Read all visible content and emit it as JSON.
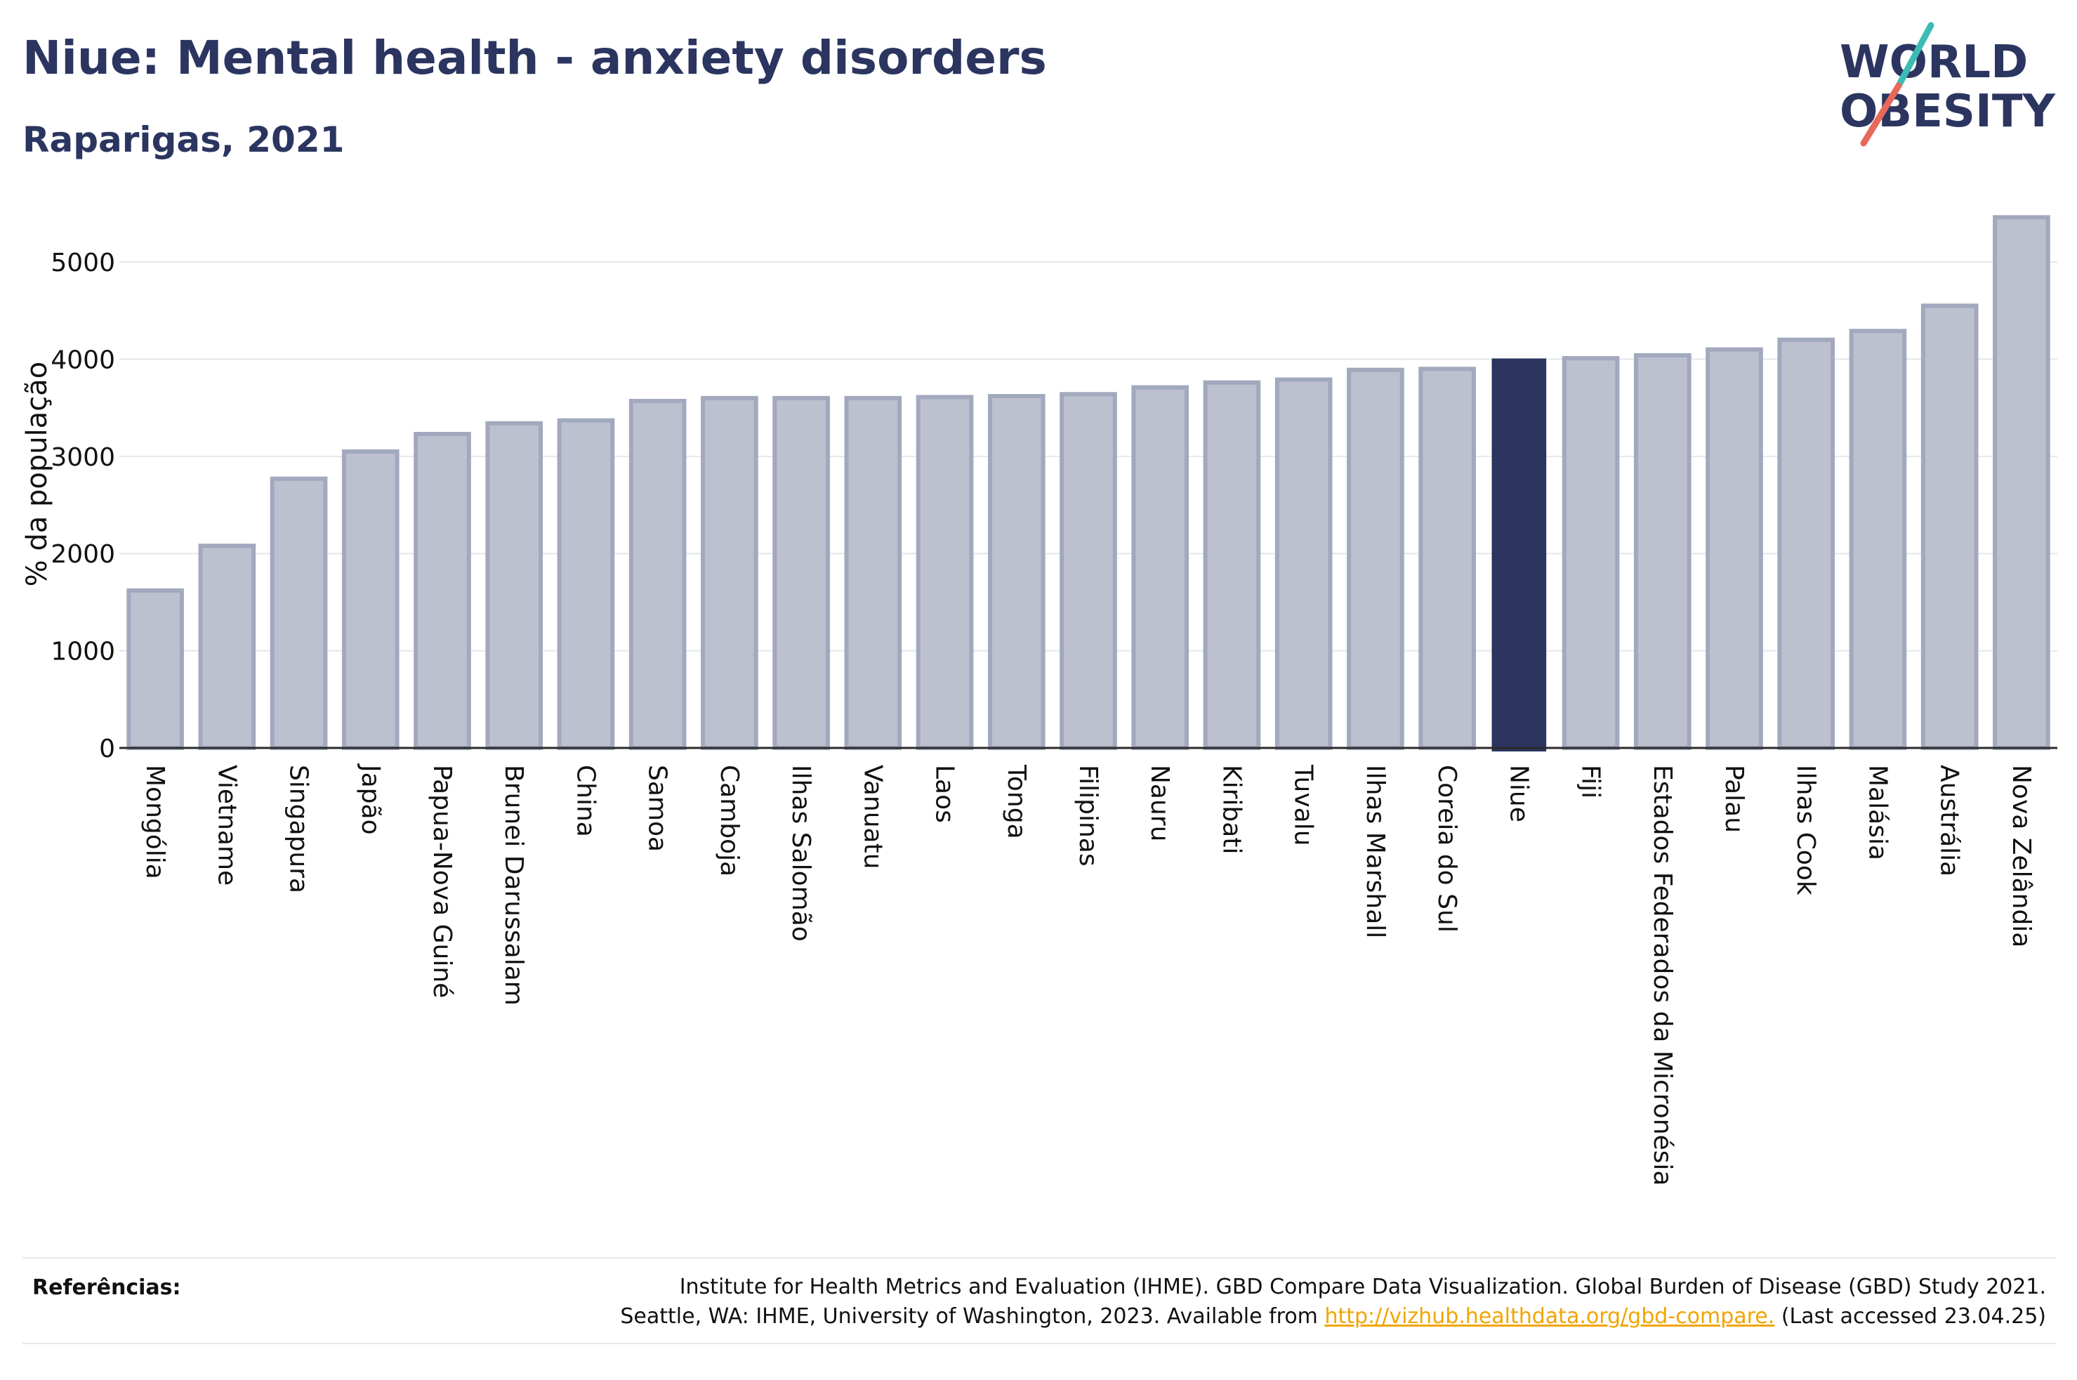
{
  "header": {
    "title": "Niue: Mental health - anxiety disorders",
    "subtitle": "Raparigas, 2021"
  },
  "logo": {
    "line1": "WORLD",
    "line2": "OBESITY"
  },
  "colors": {
    "bar": "#bcc0cf",
    "bar_border": "#a2a8bd",
    "highlight": "#2b3560",
    "grid": "#e5e7ec",
    "accent_teal": "#3cbcb4",
    "accent_red": "#e8685a"
  },
  "chart_data": {
    "type": "bar",
    "ylabel": "% da população",
    "ylim": [
      0,
      5600
    ],
    "yticks": [
      0,
      1000,
      2000,
      3000,
      4000,
      5000
    ],
    "grid": true,
    "highlight": "Niue",
    "categories": [
      "Mongólia",
      "Vietname",
      "Singapura",
      "Japão",
      "Papua-Nova Guiné",
      "Brunei Darussalam",
      "China",
      "Samoa",
      "Camboja",
      "Ilhas Salomão",
      "Vanuatu",
      "Laos",
      "Tonga",
      "Filipinas",
      "Nauru",
      "Kiribati",
      "Tuvalu",
      "Ilhas Marshall",
      "Coreia do Sul",
      "Niue",
      "Fiji",
      "Estados Federados da Micronésia",
      "Palau",
      "Ilhas Cook",
      "Malásia",
      "Austrália",
      "Nova Zelândia"
    ],
    "values": [
      1620,
      2080,
      2770,
      3050,
      3230,
      3340,
      3370,
      3570,
      3600,
      3600,
      3600,
      3610,
      3620,
      3640,
      3710,
      3760,
      3790,
      3890,
      3900,
      4000,
      4010,
      4040,
      4100,
      4200,
      4290,
      4550,
      5460
    ]
  },
  "references": {
    "label": "Referências:",
    "line1": "Institute for Health Metrics and Evaluation (IHME). GBD Compare Data Visualization. Global Burden of Disease (GBD) Study 2021.",
    "line2_prefix": "Seattle, WA: IHME, University of Washington, 2023. Available from ",
    "link": "http://vizhub.healthdata.org/gbd-compare.",
    "line2_suffix": " (Last accessed 23.04.25)"
  }
}
